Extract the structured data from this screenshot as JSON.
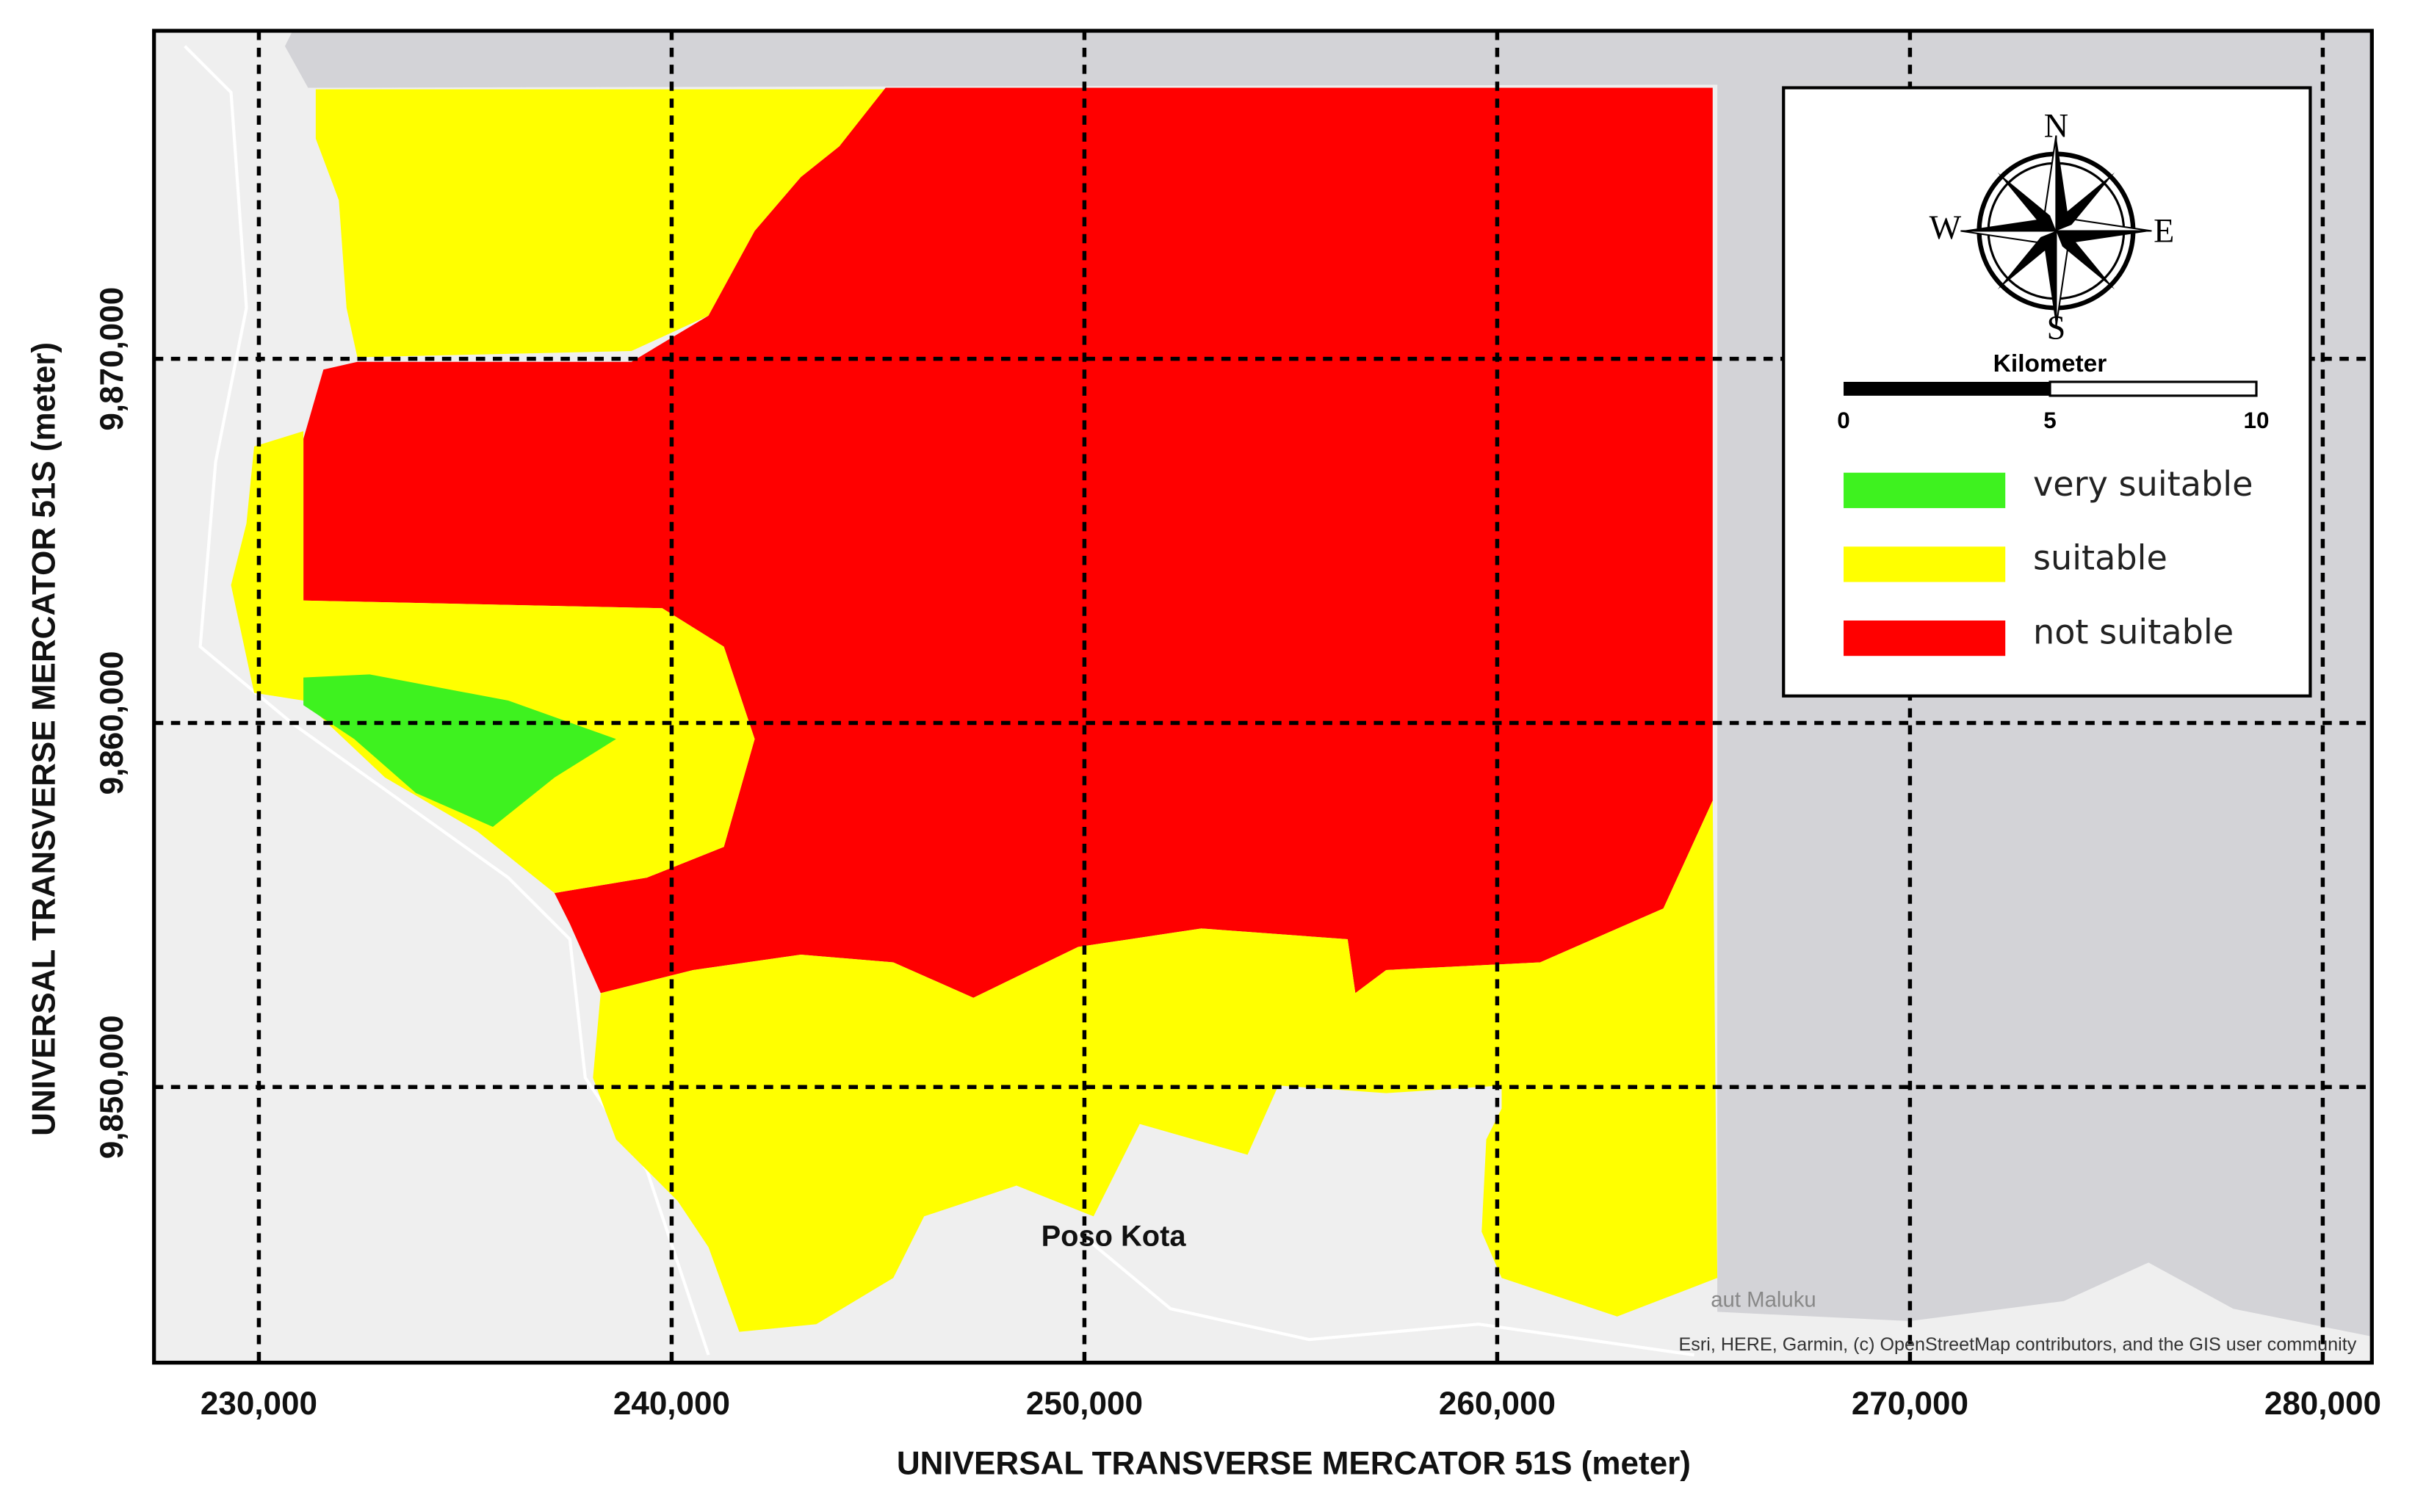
{
  "map": {
    "type": "map",
    "x_axis": {
      "label": "UNIVERSAL TRANSVERSE MERCATOR 51S (meter)",
      "lim": [
        227460,
        281190
      ],
      "ticks": [
        {
          "value": 230000,
          "label": "230,000"
        },
        {
          "value": 240000,
          "label": "240,000"
        },
        {
          "value": 250000,
          "label": "250,000"
        },
        {
          "value": 260000,
          "label": "260,000"
        },
        {
          "value": 270000,
          "label": "270,000"
        },
        {
          "value": 280000,
          "label": "280,000"
        }
      ]
    },
    "y_axis": {
      "label": "UNIVERSAL TRANSVERSE MERCATOR 51S (meter)",
      "lim": [
        9842430,
        9879010
      ],
      "ticks": [
        {
          "value": 9850000,
          "label": "9,850,000"
        },
        {
          "value": 9860000,
          "label": "9,860,000"
        },
        {
          "value": 9870000,
          "label": "9,870,000"
        }
      ]
    },
    "grid": true,
    "compass": {
      "n": "N",
      "e": "E",
      "s": "S",
      "w": "W"
    },
    "scale_bar": {
      "unit": "Kilometer",
      "ticks": [
        0,
        5,
        10
      ]
    },
    "legend": [
      {
        "name": "very suitable",
        "color": "#3ef21f"
      },
      {
        "name": "suitable",
        "color": "#ffff00"
      },
      {
        "name": "not suitable",
        "color": "#ff0000"
      }
    ],
    "places": [
      "Poso Kota",
      "aut Maluku"
    ],
    "attribution": "Esri, HERE, Garmin, (c) OpenStreetMap contributors, and the GIS user community"
  }
}
